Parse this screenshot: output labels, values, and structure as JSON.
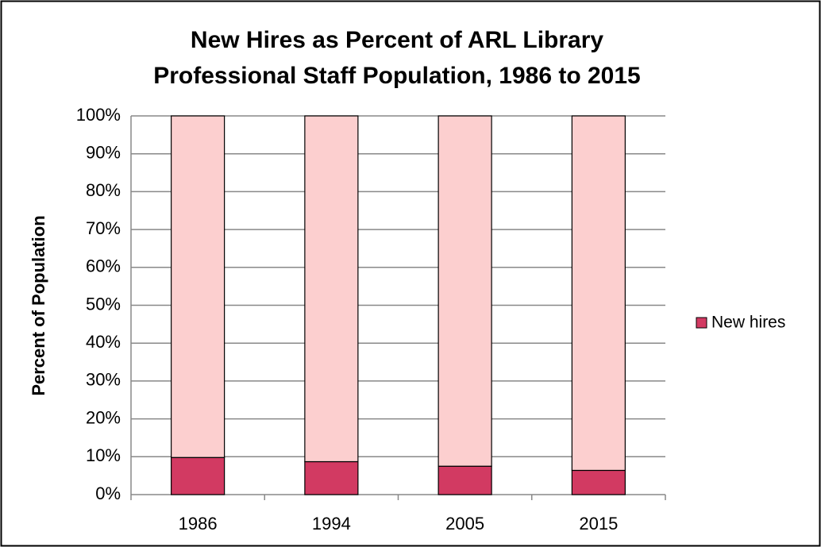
{
  "chart_data": {
    "type": "stacked_bar",
    "title": [
      "New Hires as Percent of ARL Library",
      "Professional Staff Population, 1986 to 2015"
    ],
    "y_label": "Percent of Population",
    "categories": [
      "1986",
      "1994",
      "2005",
      "2015"
    ],
    "series": [
      {
        "name": "New hires",
        "color": "#d23a62",
        "values": [
          9.8,
          8.7,
          7.5,
          6.4
        ]
      },
      {
        "color": "#fccfcf",
        "values": [
          90.2,
          91.3,
          92.5,
          93.6
        ]
      }
    ],
    "ylim": [
      0,
      100
    ],
    "yticks": [
      {
        "value": 0,
        "label": "0%"
      },
      {
        "value": 10,
        "label": "10%"
      },
      {
        "value": 20,
        "label": "20%"
      },
      {
        "value": 30,
        "label": "30%"
      },
      {
        "value": 40,
        "label": "40%"
      },
      {
        "value": 50,
        "label": "50%"
      },
      {
        "value": 60,
        "label": "60%"
      },
      {
        "value": 70,
        "label": "70%"
      },
      {
        "value": 80,
        "label": "80%"
      },
      {
        "value": 90,
        "label": "90%"
      },
      {
        "value": 100,
        "label": "100%"
      }
    ],
    "grid": true,
    "legend": "right"
  }
}
